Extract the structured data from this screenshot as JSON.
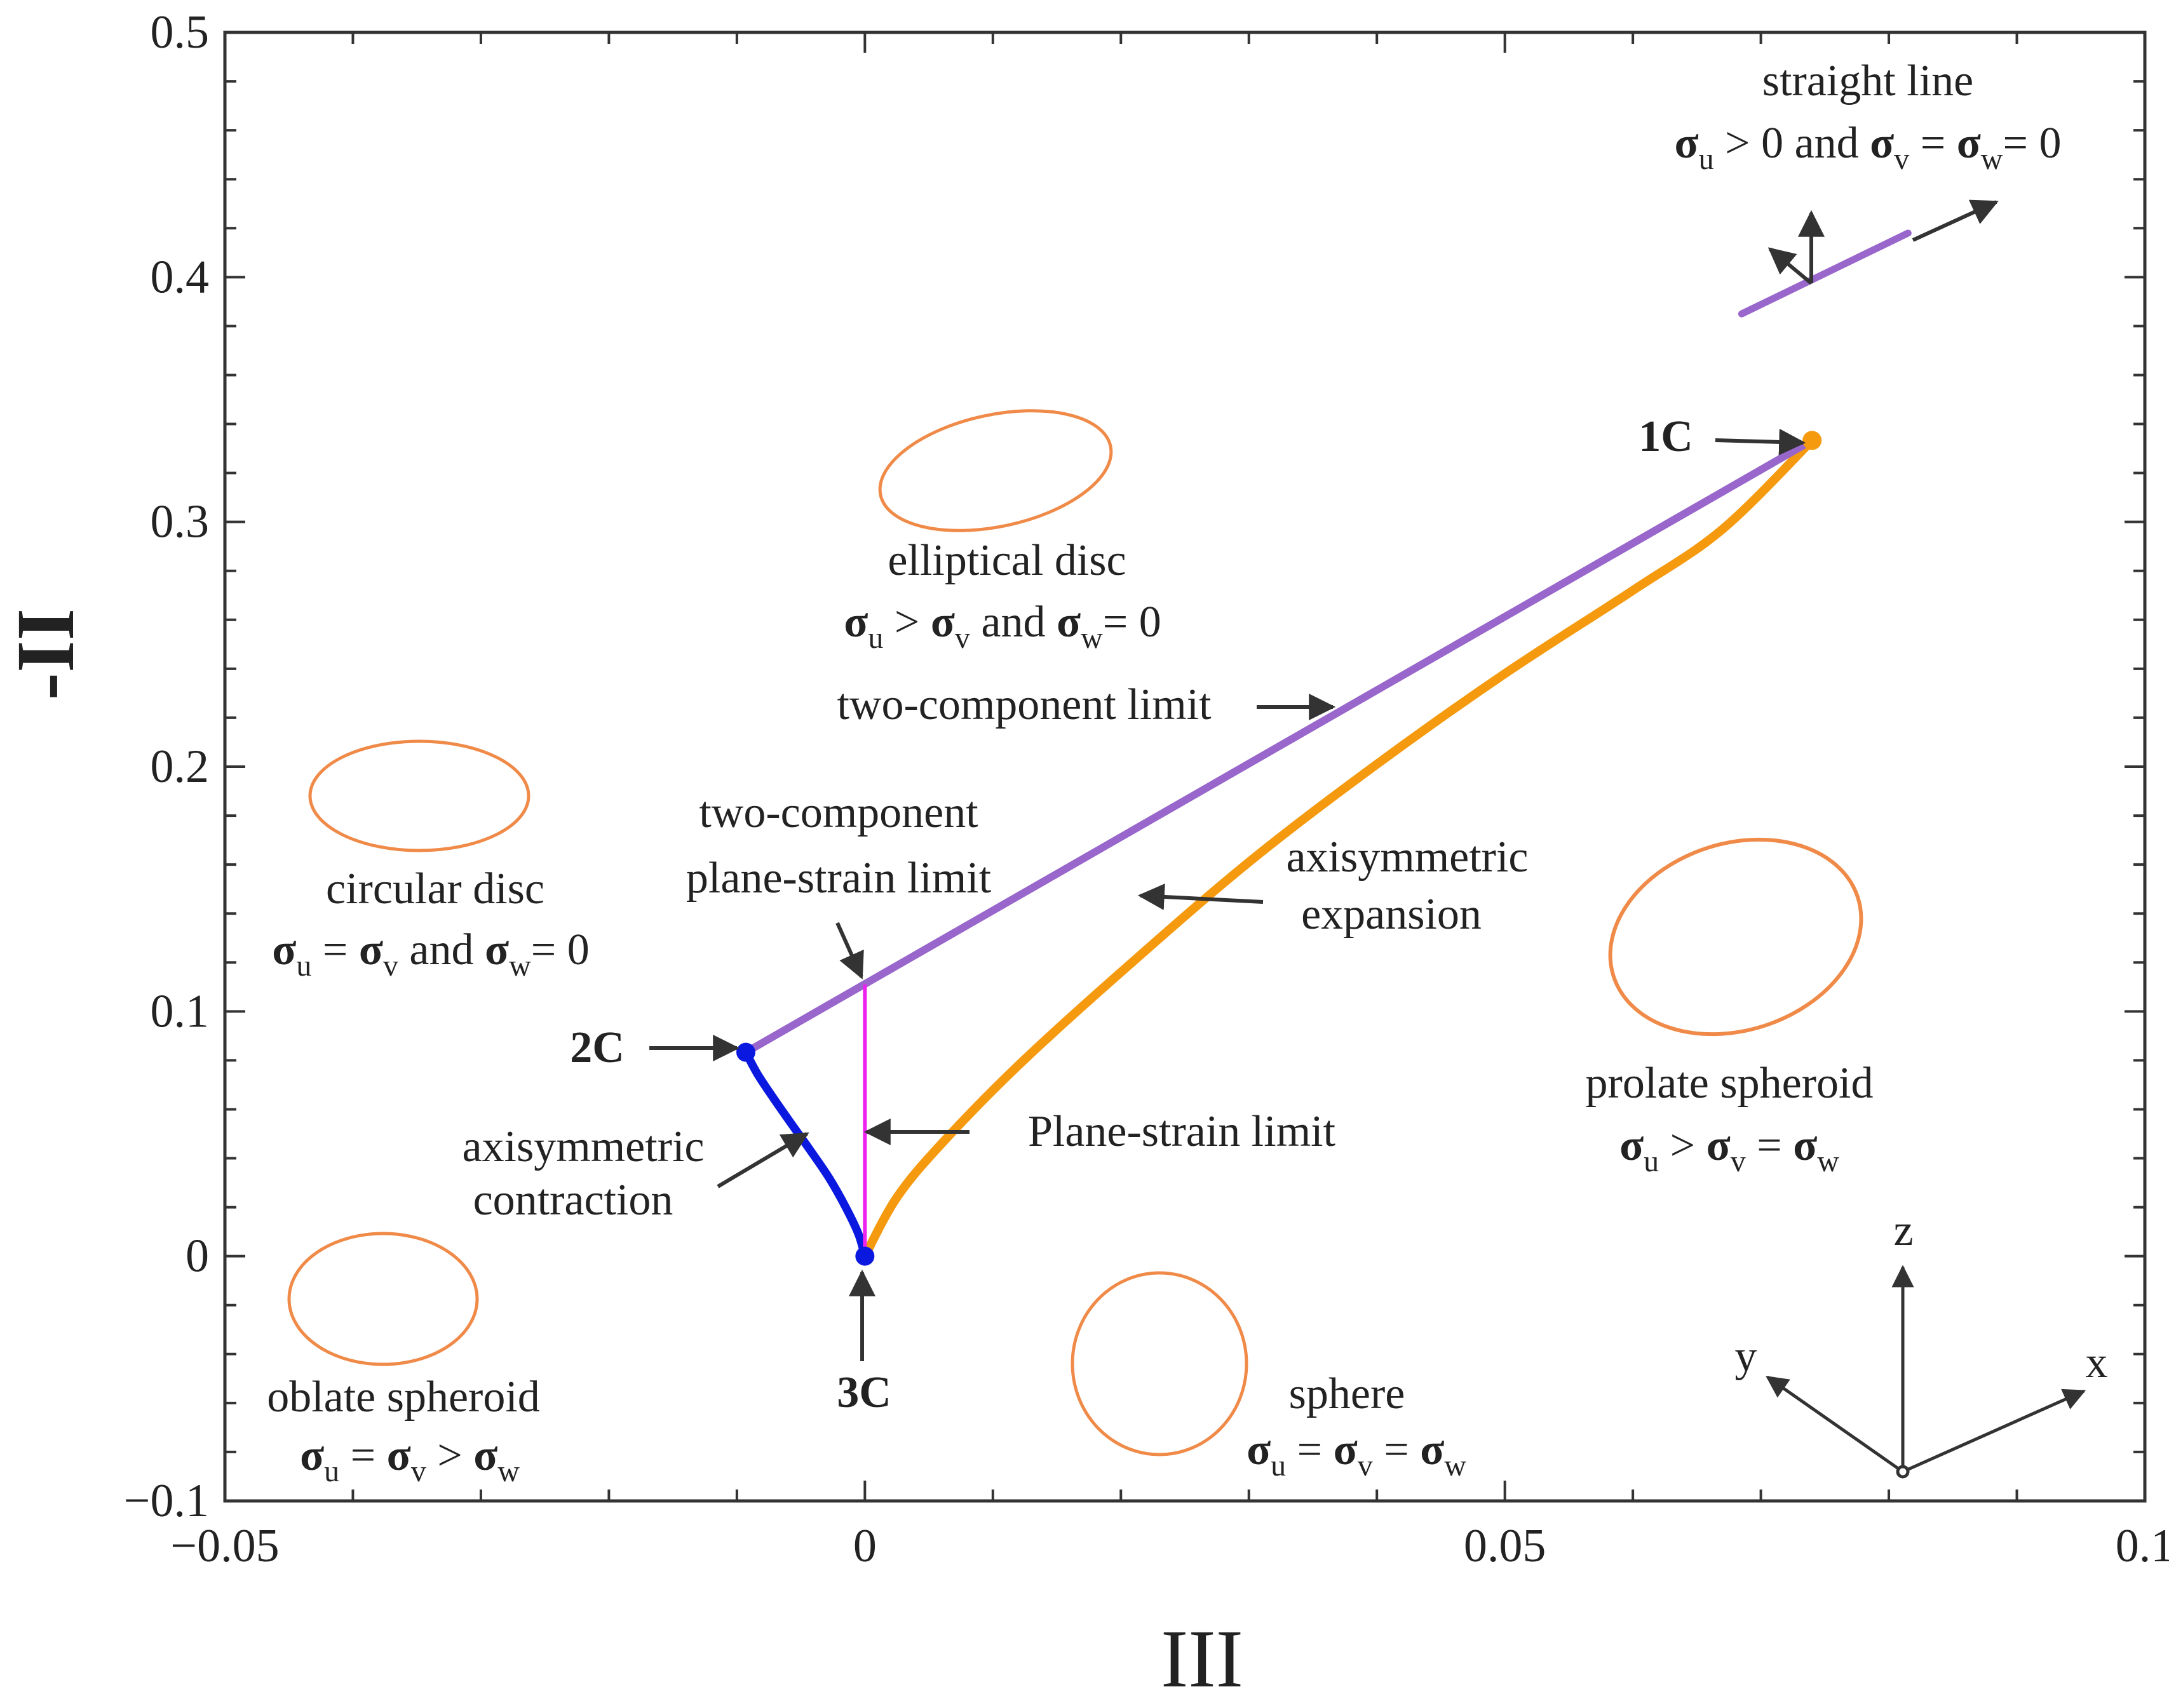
{
  "chart_data": {
    "type": "line",
    "xlabel": "III",
    "ylabel": "-II",
    "xlim": [
      -0.05,
      0.1
    ],
    "ylim": [
      -0.1,
      0.5
    ],
    "x_ticks": [
      {
        "value": -0.05,
        "label": "−0.05"
      },
      {
        "value": 0,
        "label": "0"
      },
      {
        "value": 0.05,
        "label": "0.05"
      },
      {
        "value": 0.1,
        "label": "0.1"
      }
    ],
    "y_ticks": [
      {
        "value": -0.1,
        "label": "−0.1"
      },
      {
        "value": 0,
        "label": "0"
      },
      {
        "value": 0.1,
        "label": "0.1"
      },
      {
        "value": 0.2,
        "label": "0.2"
      },
      {
        "value": 0.3,
        "label": "0.3"
      },
      {
        "value": 0.4,
        "label": "0.4"
      },
      {
        "value": 0.5,
        "label": "0.5"
      }
    ],
    "x_minor_step": 0.01,
    "y_minor_step": 0.02,
    "colors": {
      "two_component": "#9966cc",
      "axisym_expansion": "#f59a0f",
      "axisym_contraction": "#0a18e0",
      "plane_strain": "#ee22ee",
      "shape": "#f08a48",
      "arrow": "#333333",
      "axis": "#333333"
    },
    "points": {
      "p1C": {
        "label": "1C",
        "x": 0.074,
        "y": 0.3333
      },
      "p2C": {
        "label": "2C",
        "x": -0.0093,
        "y": 0.0833
      },
      "p3C": {
        "label": "3C",
        "x": 0,
        "y": 0
      }
    },
    "series": [
      {
        "name": "two-component limit",
        "color_key": "two_component",
        "x": [
          -0.0093,
          0.074
        ],
        "y": [
          0.0833,
          0.3333
        ]
      },
      {
        "name": "axisymmetric expansion",
        "color_key": "axisym_expansion",
        "equation": "III = 2*(II/-3)^1.5 ... expansion branch",
        "x": [
          0,
          0.0025,
          0.006,
          0.012,
          0.02,
          0.03,
          0.04,
          0.05,
          0.06,
          0.067,
          0.074
        ],
        "y": [
          0,
          0.024,
          0.046,
          0.078,
          0.116,
          0.161,
          0.201,
          0.238,
          0.272,
          0.297,
          0.3333
        ]
      },
      {
        "name": "axisymmetric contraction",
        "color_key": "axisym_contraction",
        "x": [
          -0.0093,
          -0.0084,
          -0.0072,
          -0.0058,
          -0.0043,
          -0.0028,
          -0.0015,
          -0.0005,
          0
        ],
        "y": [
          0.0833,
          0.0745,
          0.065,
          0.0545,
          0.0435,
          0.032,
          0.02,
          0.009,
          0
        ]
      },
      {
        "name": "Plane-strain limit",
        "color_key": "plane_strain",
        "x": [
          0,
          0
        ],
        "y": [
          0,
          0.111
        ]
      }
    ],
    "straight_line_segment": {
      "x": [
        0.0685,
        0.0815
      ],
      "y": [
        0.385,
        0.418
      ]
    },
    "labels": {
      "two_component_limit": "two-component limit",
      "two_component_plane_strain_1": "two-component",
      "two_component_plane_strain_2": "plane-strain limit",
      "axisym_expansion_1": "axisymmetric",
      "axisym_expansion_2": "expansion",
      "axisym_contraction_1": "axisymmetric",
      "axisym_contraction_2": "contraction",
      "plane_strain_limit": "Plane-strain limit",
      "label_1C": "1C",
      "label_2C": "2C",
      "label_3C": "3C"
    },
    "shape_annotations": {
      "straight_line": {
        "name": "straight line",
        "sigma": "σ",
        "sub_u": "u",
        "sub_v": "v",
        "sub_w": "w",
        "rel1": " > 0 and ",
        "rel2": " = ",
        "rel3": "= 0"
      },
      "elliptical_disc": {
        "name": "elliptical disc",
        "sigma": "σ",
        "sub_u": "u",
        "sub_v": "v",
        "sub_w": "w",
        "rel1": " > ",
        "rel2": " and ",
        "rel3": "= 0"
      },
      "circular_disc": {
        "name": "circular disc",
        "sigma": "σ",
        "sub_u": "u",
        "sub_v": "v",
        "sub_w": "w",
        "rel1": " = ",
        "rel2": " and ",
        "rel3": "= 0"
      },
      "prolate_spheroid": {
        "name": "prolate spheroid",
        "sigma": "σ",
        "sub_u": "u",
        "sub_v": "v",
        "sub_w": "w",
        "rel1": " > ",
        "rel2": " = "
      },
      "oblate_spheroid": {
        "name": "oblate spheroid",
        "sigma": "σ",
        "sub_u": "u",
        "sub_v": "v",
        "sub_w": "w",
        "rel1": " = ",
        "rel2": " > "
      },
      "sphere": {
        "name": "sphere",
        "sigma": "σ",
        "sub_u": "u",
        "sub_v": "v",
        "sub_w": "w",
        "rel1": " = ",
        "rel2": " = "
      }
    },
    "axes_glyph": {
      "x": "x",
      "y": "y",
      "z": "z"
    }
  }
}
